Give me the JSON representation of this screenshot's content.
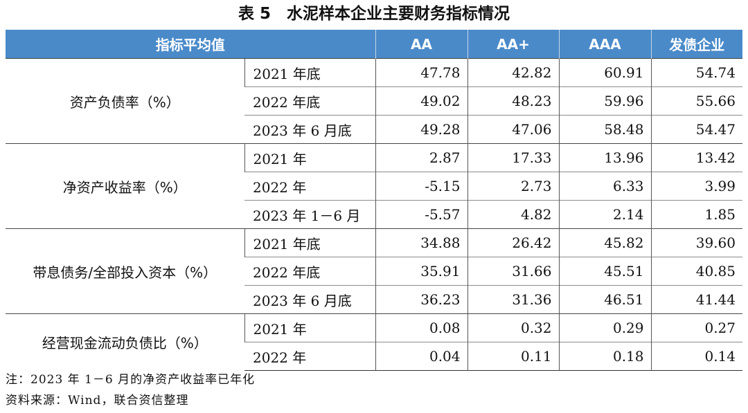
{
  "title": "表 5　水泥样本企业主要财务指标情况",
  "header": [
    "指标平均值",
    "AA",
    "AA+",
    "AAA",
    "发债企业"
  ],
  "groups": [
    {
      "metric": "资产负债率（%）",
      "rows": [
        {
          "period": "2021 年底",
          "values": [
            "47.78",
            "42.82",
            "60.91",
            "54.74"
          ]
        },
        {
          "period": "2022 年底",
          "values": [
            "49.02",
            "48.23",
            "59.96",
            "55.66"
          ]
        },
        {
          "period": "2023 年 6 月底",
          "values": [
            "49.28",
            "47.06",
            "58.48",
            "54.47"
          ]
        }
      ]
    },
    {
      "metric": "净资产收益率（%）",
      "rows": [
        {
          "period": "2021 年",
          "values": [
            "2.87",
            "17.33",
            "13.96",
            "13.42"
          ]
        },
        {
          "period": "2022 年",
          "values": [
            "-5.15",
            "2.73",
            "6.33",
            "3.99"
          ]
        },
        {
          "period": "2023 年 1－6 月",
          "values": [
            "-5.57",
            "4.82",
            "2.14",
            "1.85"
          ]
        }
      ]
    },
    {
      "metric": "带息债务/全部投入资本（%）",
      "rows": [
        {
          "period": "2021 年底",
          "values": [
            "34.88",
            "26.42",
            "45.82",
            "39.60"
          ]
        },
        {
          "period": "2022 年底",
          "values": [
            "35.91",
            "31.66",
            "45.51",
            "40.85"
          ]
        },
        {
          "period": "2023 年 6 月底",
          "values": [
            "36.23",
            "31.36",
            "46.51",
            "41.44"
          ]
        }
      ]
    },
    {
      "metric": "经营现金流动负债比（%）",
      "rows": [
        {
          "period": "2021 年",
          "values": [
            "0.08",
            "0.32",
            "0.29",
            "0.27"
          ]
        },
        {
          "period": "2022 年",
          "values": [
            "0.04",
            "0.11",
            "0.18",
            "0.14"
          ]
        }
      ]
    }
  ],
  "note": "注：2023 年 1－6 月的净资产收益率已年化",
  "source": "资料来源：Wind，联合资信整理"
}
